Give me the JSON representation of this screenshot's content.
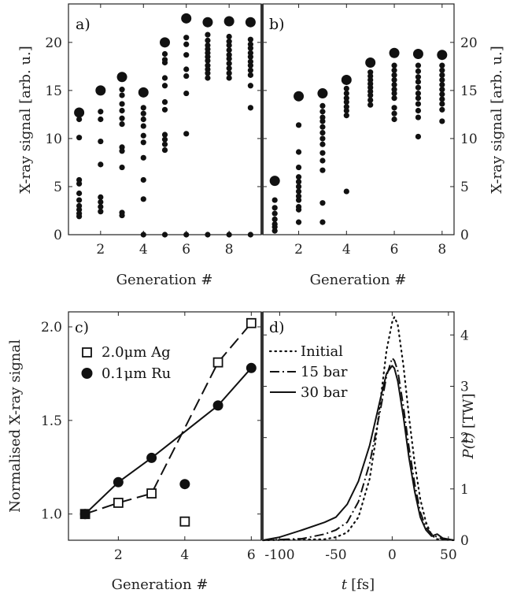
{
  "chart_data": [
    {
      "id": "a",
      "type": "scatter",
      "panel_label": "a)",
      "xlabel": "Generation #",
      "ylabel": "X-ray signal [arb. u.]",
      "xlim": [
        0.5,
        9.5
      ],
      "ylim": [
        0,
        24
      ],
      "xticks": [
        2,
        4,
        6,
        8
      ],
      "yticks": [
        0,
        5,
        10,
        15,
        20
      ],
      "best": [
        [
          1,
          12.7
        ],
        [
          2,
          15.0
        ],
        [
          3,
          16.4
        ],
        [
          4,
          14.8
        ],
        [
          5,
          20.0
        ],
        [
          6,
          22.5
        ],
        [
          7,
          22.1
        ],
        [
          8,
          22.2
        ],
        [
          9,
          22.1
        ]
      ],
      "points": [
        [
          1,
          12.0
        ],
        [
          1,
          10.1
        ],
        [
          1,
          5.7
        ],
        [
          1,
          5.3
        ],
        [
          1,
          4.3
        ],
        [
          1,
          3.6
        ],
        [
          1,
          3.0
        ],
        [
          1,
          2.6
        ],
        [
          1,
          2.2
        ],
        [
          1,
          1.9
        ],
        [
          2,
          12.8
        ],
        [
          2,
          12.0
        ],
        [
          2,
          9.7
        ],
        [
          2,
          7.3
        ],
        [
          2,
          3.9
        ],
        [
          2,
          3.4
        ],
        [
          2,
          2.9
        ],
        [
          2,
          2.4
        ],
        [
          3,
          15.1
        ],
        [
          3,
          14.5
        ],
        [
          3,
          13.6
        ],
        [
          3,
          12.9
        ],
        [
          3,
          12.1
        ],
        [
          3,
          11.5
        ],
        [
          3,
          9.1
        ],
        [
          3,
          8.7
        ],
        [
          3,
          7.0
        ],
        [
          3,
          2.3
        ],
        [
          3,
          2.0
        ],
        [
          4,
          13.2
        ],
        [
          4,
          12.6
        ],
        [
          4,
          12.0
        ],
        [
          4,
          11.3
        ],
        [
          4,
          10.3
        ],
        [
          4,
          9.6
        ],
        [
          4,
          8.0
        ],
        [
          4,
          5.7
        ],
        [
          4,
          3.7
        ],
        [
          4,
          0
        ],
        [
          5,
          18.8
        ],
        [
          5,
          18.2
        ],
        [
          5,
          17.9
        ],
        [
          5,
          16.3
        ],
        [
          5,
          15.5
        ],
        [
          5,
          13.8
        ],
        [
          5,
          13.0
        ],
        [
          5,
          10.4
        ],
        [
          5,
          9.9
        ],
        [
          5,
          9.4
        ],
        [
          5,
          8.8
        ],
        [
          5,
          0
        ],
        [
          6,
          20.5
        ],
        [
          6,
          19.8
        ],
        [
          6,
          18.7
        ],
        [
          6,
          17.2
        ],
        [
          6,
          16.5
        ],
        [
          6,
          14.7
        ],
        [
          6,
          10.5
        ],
        [
          6,
          0
        ],
        [
          7,
          20.8
        ],
        [
          7,
          20.2
        ],
        [
          7,
          19.7
        ],
        [
          7,
          19.3
        ],
        [
          7,
          18.9
        ],
        [
          7,
          18.5
        ],
        [
          7,
          18.1
        ],
        [
          7,
          17.6
        ],
        [
          7,
          17.2
        ],
        [
          7,
          16.8
        ],
        [
          7,
          16.3
        ],
        [
          7,
          0
        ],
        [
          8,
          20.6
        ],
        [
          8,
          20.1
        ],
        [
          8,
          19.7
        ],
        [
          8,
          19.2
        ],
        [
          8,
          18.7
        ],
        [
          8,
          18.3
        ],
        [
          8,
          17.8
        ],
        [
          8,
          17.3
        ],
        [
          8,
          16.8
        ],
        [
          8,
          16.3
        ],
        [
          8,
          0
        ],
        [
          9,
          20.3
        ],
        [
          9,
          19.8
        ],
        [
          9,
          19.4
        ],
        [
          9,
          18.9
        ],
        [
          9,
          18.5
        ],
        [
          9,
          18.0
        ],
        [
          9,
          17.6
        ],
        [
          9,
          17.1
        ],
        [
          9,
          16.6
        ],
        [
          9,
          15.5
        ],
        [
          9,
          13.2
        ],
        [
          9,
          0
        ]
      ]
    },
    {
      "id": "b",
      "type": "scatter",
      "panel_label": "b)",
      "xlabel": "Generation #",
      "ylabel": "X-ray signal [arb. u.]",
      "xlim": [
        0.5,
        8.5
      ],
      "ylim": [
        0,
        24
      ],
      "xticks": [
        2,
        4,
        6,
        8
      ],
      "yticks": [
        0,
        5,
        10,
        15,
        20
      ],
      "best": [
        [
          1,
          5.6
        ],
        [
          2,
          14.4
        ],
        [
          3,
          14.7
        ],
        [
          4,
          16.1
        ],
        [
          5,
          17.9
        ],
        [
          6,
          18.9
        ],
        [
          7,
          18.8
        ],
        [
          8,
          18.7
        ]
      ],
      "points": [
        [
          1,
          3.6
        ],
        [
          1,
          2.8
        ],
        [
          1,
          2.2
        ],
        [
          1,
          1.6
        ],
        [
          1,
          1.1
        ],
        [
          1,
          0.8
        ],
        [
          1,
          0.4
        ],
        [
          2,
          11.4
        ],
        [
          2,
          8.6
        ],
        [
          2,
          7.0
        ],
        [
          2,
          6.0
        ],
        [
          2,
          5.5
        ],
        [
          2,
          5.0
        ],
        [
          2,
          4.5
        ],
        [
          2,
          4.0
        ],
        [
          2,
          3.6
        ],
        [
          2,
          2.9
        ],
        [
          2,
          2.6
        ],
        [
          2,
          1.3
        ],
        [
          3,
          13.4
        ],
        [
          3,
          12.8
        ],
        [
          3,
          12.2
        ],
        [
          3,
          11.8
        ],
        [
          3,
          11.2
        ],
        [
          3,
          10.6
        ],
        [
          3,
          10.0
        ],
        [
          3,
          9.4
        ],
        [
          3,
          8.5
        ],
        [
          3,
          7.7
        ],
        [
          3,
          6.7
        ],
        [
          3,
          3.3
        ],
        [
          3,
          1.3
        ],
        [
          4,
          15.2
        ],
        [
          4,
          14.7
        ],
        [
          4,
          14.2
        ],
        [
          4,
          13.8
        ],
        [
          4,
          13.3
        ],
        [
          4,
          12.9
        ],
        [
          4,
          12.4
        ],
        [
          4,
          4.5
        ],
        [
          5,
          16.9
        ],
        [
          5,
          16.5
        ],
        [
          5,
          16.1
        ],
        [
          5,
          15.7
        ],
        [
          5,
          15.3
        ],
        [
          5,
          14.9
        ],
        [
          5,
          14.5
        ],
        [
          5,
          14.0
        ],
        [
          5,
          13.5
        ],
        [
          6,
          17.6
        ],
        [
          6,
          17.1
        ],
        [
          6,
          16.6
        ],
        [
          6,
          16.1
        ],
        [
          6,
          15.6
        ],
        [
          6,
          15.1
        ],
        [
          6,
          14.7
        ],
        [
          6,
          14.2
        ],
        [
          6,
          13.2
        ],
        [
          6,
          12.6
        ],
        [
          6,
          12.0
        ],
        [
          7,
          17.6
        ],
        [
          7,
          17.0
        ],
        [
          7,
          16.4
        ],
        [
          7,
          15.9
        ],
        [
          7,
          15.3
        ],
        [
          7,
          14.7
        ],
        [
          7,
          14.2
        ],
        [
          7,
          13.6
        ],
        [
          7,
          12.9
        ],
        [
          7,
          12.2
        ],
        [
          7,
          10.2
        ],
        [
          8,
          17.6
        ],
        [
          8,
          17.1
        ],
        [
          8,
          16.6
        ],
        [
          8,
          16.1
        ],
        [
          8,
          15.6
        ],
        [
          8,
          15.1
        ],
        [
          8,
          14.6
        ],
        [
          8,
          14.1
        ],
        [
          8,
          13.6
        ],
        [
          8,
          13.0
        ],
        [
          8,
          11.8
        ]
      ]
    },
    {
      "id": "c",
      "type": "line",
      "panel_label": "c)",
      "xlabel": "Generation #",
      "ylabel": "Normalised X-ray signal",
      "xlim": [
        0.5,
        6.3
      ],
      "ylim": [
        0.86,
        2.08
      ],
      "xticks": [
        2,
        4,
        6
      ],
      "yticks": [
        1.0,
        1.5,
        2.0
      ],
      "ytick_labels": [
        "1.0",
        "1.5",
        "2.0"
      ],
      "legend": {
        "placement": "top-left"
      },
      "series": [
        {
          "name": "2.0μm Ag",
          "marker": "square",
          "linestyle": "dashed",
          "points": [
            [
              1,
              1.0
            ],
            [
              2,
              1.06
            ],
            [
              3,
              1.11
            ],
            [
              4,
              0.96
            ],
            [
              5,
              1.81
            ],
            [
              6,
              2.02
            ]
          ],
          "line_x": [
            1,
            2,
            3,
            5,
            6
          ]
        },
        {
          "name": "0.1μm Ru",
          "marker": "circle",
          "linestyle": "solid",
          "points": [
            [
              1,
              1.0
            ],
            [
              2,
              1.17
            ],
            [
              3,
              1.3
            ],
            [
              4,
              1.16
            ],
            [
              5,
              1.58
            ],
            [
              6,
              1.78
            ]
          ],
          "line_x": [
            1,
            2,
            3,
            5,
            6
          ]
        }
      ]
    },
    {
      "id": "d",
      "type": "line",
      "panel_label": "d)",
      "xlabel_var": "t",
      "xlabel_unit": "[fs]",
      "ylabel_var": "P(t)",
      "ylabel_unit": "[TW]",
      "xlim": [
        -115,
        55
      ],
      "ylim": [
        0,
        4.45
      ],
      "xticks": [
        -100,
        -50,
        0,
        50
      ],
      "xtick_labels": [
        "-100",
        "-50",
        "0",
        "50"
      ],
      "yticks": [
        0,
        1,
        2,
        3,
        4
      ],
      "legend": {
        "placement": "top-left"
      },
      "series": [
        {
          "name": "Initial",
          "linestyle": "dotted",
          "points": [
            [
              -115,
              0
            ],
            [
              -60,
              0.02
            ],
            [
              -50,
              0.06
            ],
            [
              -40,
              0.15
            ],
            [
              -30,
              0.45
            ],
            [
              -20,
              1.2
            ],
            [
              -15,
              1.9
            ],
            [
              -10,
              2.8
            ],
            [
              -5,
              3.7
            ],
            [
              0,
              4.25
            ],
            [
              2,
              4.35
            ],
            [
              5,
              4.2
            ],
            [
              10,
              3.4
            ],
            [
              15,
              2.4
            ],
            [
              20,
              1.5
            ],
            [
              25,
              0.8
            ],
            [
              30,
              0.35
            ],
            [
              35,
              0.1
            ],
            [
              40,
              0.02
            ],
            [
              55,
              0
            ]
          ]
        },
        {
          "name": "15 bar",
          "linestyle": "dashdot",
          "points": [
            [
              -115,
              0
            ],
            [
              -80,
              0.03
            ],
            [
              -60,
              0.12
            ],
            [
              -50,
              0.2
            ],
            [
              -40,
              0.35
            ],
            [
              -30,
              0.75
            ],
            [
              -20,
              1.5
            ],
            [
              -10,
              2.6
            ],
            [
              -5,
              3.2
            ],
            [
              0,
              3.55
            ],
            [
              2,
              3.5
            ],
            [
              5,
              3.3
            ],
            [
              10,
              2.6
            ],
            [
              15,
              1.8
            ],
            [
              20,
              1.1
            ],
            [
              25,
              0.55
            ],
            [
              30,
              0.25
            ],
            [
              35,
              0.12
            ],
            [
              40,
              0.06
            ],
            [
              45,
              0.02
            ],
            [
              55,
              0
            ]
          ]
        },
        {
          "name": "30 bar",
          "linestyle": "solid",
          "points": [
            [
              -115,
              0
            ],
            [
              -100,
              0.06
            ],
            [
              -80,
              0.2
            ],
            [
              -60,
              0.35
            ],
            [
              -50,
              0.45
            ],
            [
              -40,
              0.7
            ],
            [
              -30,
              1.15
            ],
            [
              -20,
              1.85
            ],
            [
              -10,
              2.8
            ],
            [
              -5,
              3.25
            ],
            [
              0,
              3.4
            ],
            [
              2,
              3.35
            ],
            [
              5,
              3.1
            ],
            [
              10,
              2.4
            ],
            [
              15,
              1.6
            ],
            [
              20,
              0.95
            ],
            [
              25,
              0.45
            ],
            [
              30,
              0.2
            ],
            [
              35,
              0.08
            ],
            [
              40,
              0.12
            ],
            [
              45,
              0.04
            ],
            [
              55,
              0
            ]
          ]
        }
      ]
    }
  ]
}
